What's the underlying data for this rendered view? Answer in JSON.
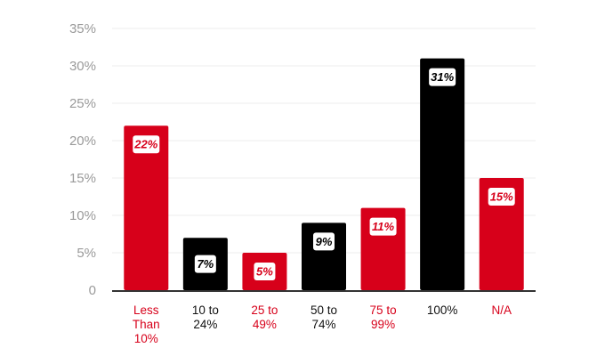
{
  "chart_data": {
    "type": "bar",
    "title": "",
    "xlabel": "",
    "ylabel": "",
    "ylim": [
      0,
      35
    ],
    "yticks": [
      "0",
      "5%",
      "10%",
      "15%",
      "20%",
      "25%",
      "30%",
      "35%"
    ],
    "grid": true,
    "legend": "none",
    "categories": [
      [
        "Less",
        "Than",
        "10%"
      ],
      [
        "10 to",
        "24%"
      ],
      [
        "25 to",
        "49%"
      ],
      [
        "50 to",
        "74%"
      ],
      [
        "75 to",
        "99%"
      ],
      [
        "100%"
      ],
      [
        "N/A"
      ]
    ],
    "values": [
      22,
      7,
      5,
      9,
      11,
      31,
      15
    ],
    "data_labels": [
      "22%",
      "7%",
      "5%",
      "9%",
      "11%",
      "31%",
      "15%"
    ],
    "bar_colors": [
      "#d7001a",
      "#000000",
      "#d7001a",
      "#000000",
      "#d7001a",
      "#000000",
      "#d7001a"
    ],
    "category_label_colors": [
      "#d7001a",
      "#111111",
      "#d7001a",
      "#111111",
      "#d7001a",
      "#111111",
      "#d7001a"
    ],
    "gridline_color": "#eeeeee",
    "axis_color": "#333333"
  }
}
